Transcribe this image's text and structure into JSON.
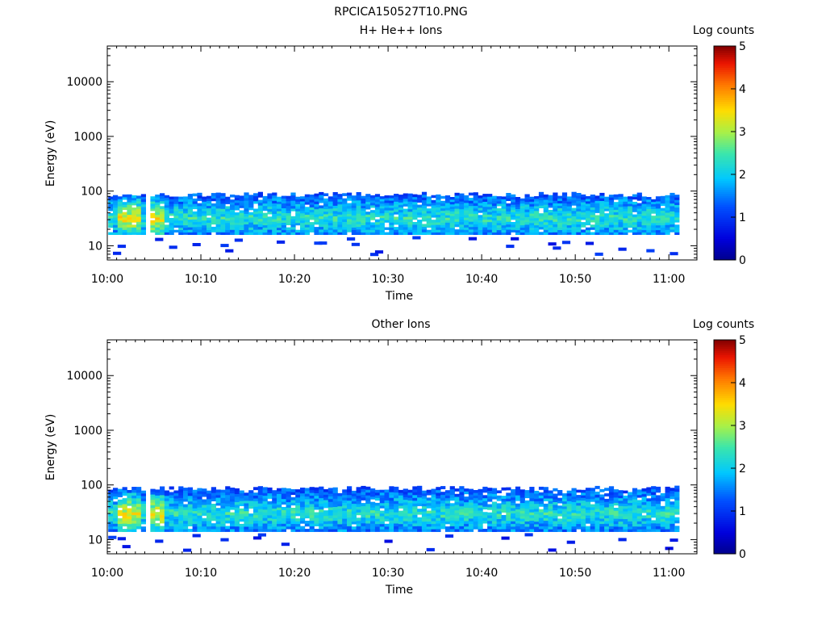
{
  "page_title": "RPCICA150527T10.PNG",
  "chart_data": [
    {
      "type": "heatmap",
      "title": "H+ He++ Ions",
      "xlabel": "Time",
      "ylabel": "Energy (eV)",
      "x_ticks": [
        "10:00",
        "10:10",
        "10:20",
        "10:30",
        "10:40",
        "10:50",
        "11:00"
      ],
      "x_range_minutes": [
        0,
        63
      ],
      "y_scale": "log",
      "y_ticks": [
        "10",
        "100",
        "1000",
        "10000"
      ],
      "y_range": [
        5.5,
        45000
      ],
      "colorbar": {
        "label": "Log counts",
        "ticks": [
          "0",
          "1",
          "2",
          "3",
          "4",
          "5"
        ],
        "range": [
          0,
          5
        ],
        "colormap": "rainbow"
      },
      "band": {
        "min_ev": 16,
        "max_ev": 95,
        "peak_log_counts": 3.7,
        "peak_time_minutes": [
          1,
          6
        ],
        "peak_energy_ev": 32
      },
      "grid": false
    },
    {
      "type": "heatmap",
      "title": "Other Ions",
      "xlabel": "Time",
      "ylabel": "Energy (eV)",
      "x_ticks": [
        "10:00",
        "10:10",
        "10:20",
        "10:30",
        "10:40",
        "10:50",
        "11:00"
      ],
      "x_range_minutes": [
        0,
        63
      ],
      "y_scale": "log",
      "y_ticks": [
        "10",
        "100",
        "1000",
        "10000"
      ],
      "y_range": [
        5.5,
        45000
      ],
      "colorbar": {
        "label": "Log counts",
        "ticks": [
          "0",
          "1",
          "2",
          "3",
          "4",
          "5"
        ],
        "range": [
          0,
          5
        ],
        "colormap": "rainbow"
      },
      "band": {
        "min_ev": 14,
        "max_ev": 95,
        "peak_log_counts": 3.6,
        "peak_time_minutes": [
          1,
          6
        ],
        "peak_energy_ev": 30
      },
      "grid": false
    }
  ]
}
